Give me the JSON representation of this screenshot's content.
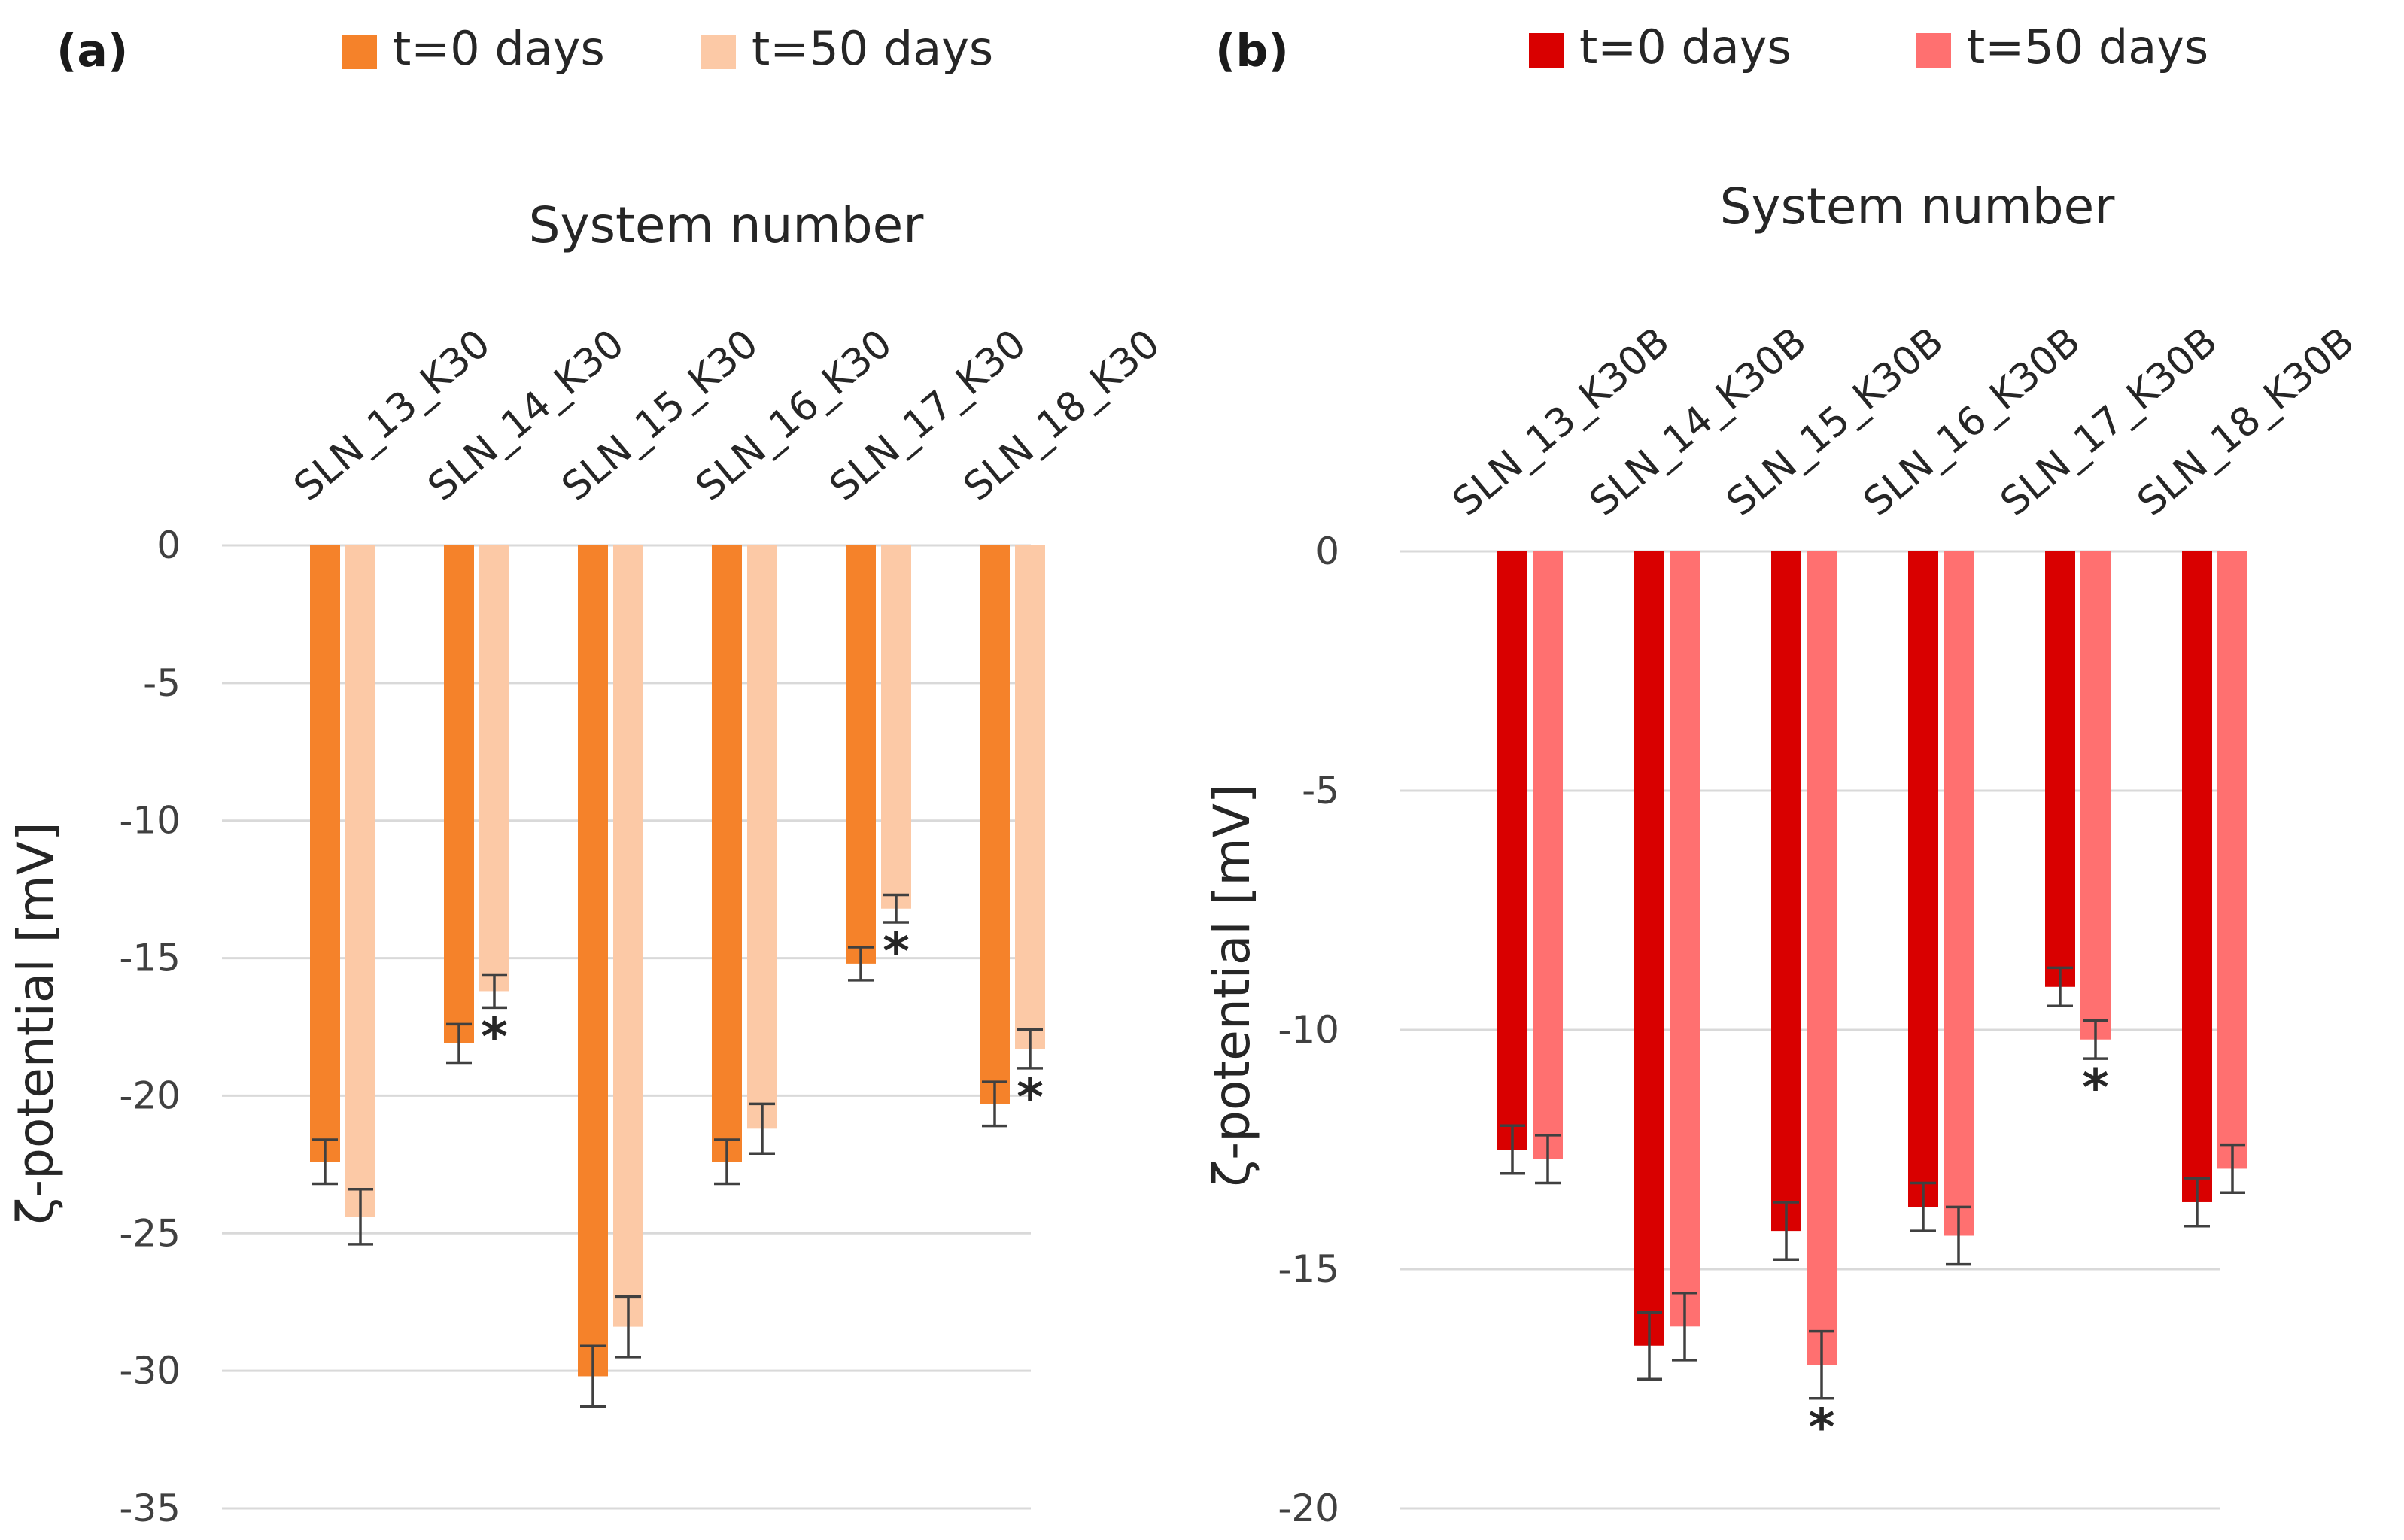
{
  "chart_data": [
    {
      "type": "bar",
      "panel_label": "(a)",
      "title": "",
      "xlabel": "System number",
      "ylabel": "ζ-potential  [mV]",
      "ylim": [
        -35,
        0
      ],
      "yticks": [
        0,
        -5,
        -10,
        -15,
        -20,
        -25,
        -30,
        -35
      ],
      "ytick_labels": [
        "0",
        "-5",
        "-10",
        "-15",
        "-20",
        "-25",
        "-30",
        "-35"
      ],
      "grid": true,
      "legend_position": "top",
      "categories": [
        "SLN_13_K30",
        "SLN_14_K30",
        "SLN_15_K30",
        "SLN_16_K30",
        "SLN_17_K30",
        "SLN_18_K30"
      ],
      "series": [
        {
          "name": "t=0 days",
          "color": "#f5822a",
          "values": [
            -22.4,
            -18.1,
            -30.2,
            -22.4,
            -15.2,
            -20.3
          ],
          "errors": [
            0.8,
            0.7,
            1.1,
            0.8,
            0.6,
            0.8
          ],
          "significance": [
            "",
            "",
            "",
            "",
            "",
            ""
          ]
        },
        {
          "name": "t=50 days",
          "color": "#fcc9a6",
          "values": [
            -24.4,
            -16.2,
            -28.4,
            -21.2,
            -13.2,
            -18.3
          ],
          "errors": [
            1.0,
            0.6,
            1.1,
            0.9,
            0.5,
            0.7
          ],
          "significance": [
            "",
            "*",
            "",
            "",
            "*",
            "*"
          ]
        }
      ]
    },
    {
      "type": "bar",
      "panel_label": "(b)",
      "title": "",
      "xlabel": "System number",
      "ylabel": "ζ-potential  [mV]",
      "ylim": [
        -20,
        0
      ],
      "yticks": [
        0,
        -5,
        -10,
        -15,
        -20
      ],
      "ytick_labels": [
        "0",
        "-5",
        "-10",
        "-15",
        "-20"
      ],
      "grid": true,
      "legend_position": "top",
      "categories": [
        "SLN_13_K30B",
        "SLN_14_K30B",
        "SLN_15_K30B",
        "SLN_16_K30B",
        "SLN_17_K30B",
        "SLN_18_K30B"
      ],
      "series": [
        {
          "name": "t=0 days",
          "color": "#d90000",
          "values": [
            -12.5,
            -16.6,
            -14.2,
            -13.7,
            -9.1,
            -13.6
          ],
          "errors": [
            0.5,
            0.7,
            0.6,
            0.5,
            0.4,
            0.5
          ],
          "significance": [
            "",
            "",
            "",
            "",
            "",
            ""
          ]
        },
        {
          "name": "t=50 days",
          "color": "#ff7070",
          "values": [
            -12.7,
            -16.2,
            -17.0,
            -14.3,
            -10.2,
            -12.9
          ],
          "errors": [
            0.5,
            0.7,
            0.7,
            0.6,
            0.4,
            0.5
          ],
          "significance": [
            "",
            "",
            "*",
            "",
            "*",
            ""
          ]
        }
      ]
    }
  ]
}
